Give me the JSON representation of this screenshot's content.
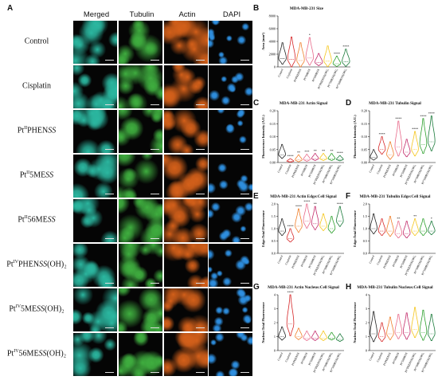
{
  "panel_labels": {
    "A": "A",
    "B": "B",
    "C": "C",
    "D": "D",
    "E": "E",
    "F": "F",
    "G": "G",
    "H": "H"
  },
  "columns": [
    "Merged",
    "Tubulin",
    "Actin",
    "DAPI"
  ],
  "rows": [
    {
      "base": "Control",
      "sup": "",
      "mid": "",
      "em": "",
      "tail": ""
    },
    {
      "base": "Cisplatin",
      "sup": "",
      "mid": "",
      "em": "",
      "tail": ""
    },
    {
      "base": "Pt",
      "sup": "II",
      "mid": "PHEN",
      "em": "SS",
      "tail": ""
    },
    {
      "base": "Pt",
      "sup": "II",
      "mid": "5ME",
      "em": "SS",
      "tail": ""
    },
    {
      "base": "Pt",
      "sup": "II",
      "mid": "56ME",
      "em": "SS",
      "tail": ""
    },
    {
      "base": "Pt",
      "sup": "IV",
      "mid": "PHEN",
      "em": "SS",
      "tail": "(OH)₂"
    },
    {
      "base": "Pt",
      "sup": "IV",
      "mid": "5ME",
      "em": "SS",
      "tail": "(OH)₂"
    },
    {
      "base": "Pt",
      "sup": "IV",
      "mid": "56ME",
      "em": "SS",
      "tail": "(OH)₂"
    }
  ],
  "colors": {
    "merged": "#2bb7a0",
    "tubulin": "#3fae3f",
    "actin": "#d4601a",
    "dapi": "#2e8fe0",
    "c0": "#222222",
    "c1": "#d62728",
    "c2": "#f07f2a",
    "c3": "#e86a8a",
    "c4": "#c22a6a",
    "c5": "#f5c518",
    "c6": "#2ca02c",
    "c7": "#1a7a3a"
  },
  "chart_categories": [
    "Control",
    "Cisplatin",
    "PtᴵᴵPHENSS",
    "Ptᴵᴵ5MESS",
    "Ptᴵᴵ56MESS",
    "PtᴵⱽPHENSS(OH)₂",
    "Ptᴵⱽ5MESS(OH)₂",
    "Ptᴵⱽ56MESS(OH)₂"
  ],
  "chart_data": [
    {
      "panel": "B",
      "type": "violin",
      "title": "MDA-MB-231 Size",
      "ylabel": "Area (mm²)",
      "yticks": [
        "0",
        "2000",
        "4000",
        "6000",
        "8000"
      ],
      "ylim": [
        0,
        8000
      ],
      "medians": [
        1300,
        1200,
        1000,
        1400,
        700,
        900,
        500,
        800
      ],
      "spread": [
        2500,
        3500,
        2800,
        3200,
        1400,
        2400,
        1200,
        2000
      ],
      "stars": [
        "",
        "",
        "",
        "*",
        "",
        "",
        "****",
        "****"
      ]
    },
    {
      "panel": "C",
      "type": "violin",
      "title": "MDA-MB-231 Actin Signal",
      "ylabel": "Fluorescence Intensity (A.U.)",
      "yticks": [
        "0.00",
        "0.05",
        "0.10",
        "0.15",
        "0.20"
      ],
      "ylim": [
        0,
        0.2
      ],
      "medians": [
        0.03,
        0.005,
        0.01,
        0.012,
        0.015,
        0.015,
        0.015,
        0.012
      ],
      "spread": [
        0.04,
        0.01,
        0.02,
        0.02,
        0.02,
        0.02,
        0.02,
        0.015
      ],
      "stars": [
        "",
        "****",
        "**",
        "***",
        "**",
        "**",
        "**",
        "****"
      ]
    },
    {
      "panel": "D",
      "type": "violin",
      "title": "MDA-MB-231 Tubulin Signal",
      "ylabel": "Fluorescence Intensity (A.U.)",
      "yticks": [
        "0.00",
        "0.05",
        "0.10",
        "0.15",
        "0.20"
      ],
      "ylim": [
        0,
        0.2
      ],
      "medians": [
        0.02,
        0.05,
        0.03,
        0.06,
        0.04,
        0.05,
        0.07,
        0.08
      ],
      "spread": [
        0.03,
        0.05,
        0.05,
        0.1,
        0.05,
        0.07,
        0.1,
        0.1
      ],
      "stars": [
        "",
        "****",
        "",
        "****",
        "",
        "****",
        "****",
        "****"
      ]
    },
    {
      "panel": "E",
      "type": "violin",
      "title": "MDA-MB-231 Actin Edge:Cell Signal",
      "ylabel": "Edge:Total Fluorescence",
      "yticks": [
        "0.0",
        "0.5",
        "1.0",
        "1.5",
        "2.0"
      ],
      "ylim": [
        0,
        2
      ],
      "medians": [
        0.9,
        0.6,
        1.1,
        1.3,
        1.2,
        1.1,
        1.0,
        1.3
      ],
      "spread": [
        0.5,
        0.4,
        0.7,
        0.8,
        0.7,
        0.5,
        0.5,
        0.6
      ],
      "stars": [
        "",
        "****",
        "****",
        "****",
        "**",
        "",
        "",
        "****"
      ]
    },
    {
      "panel": "F",
      "type": "violin",
      "title": "MDA-MB-231 Tubulin Edge:Cell Signal",
      "ylabel": "Edge:Total Fluorescence",
      "yticks": [
        "0.0",
        "0.5",
        "1.0",
        "1.5",
        "2.0"
      ],
      "ylim": [
        0,
        2
      ],
      "medians": [
        1.0,
        0.9,
        0.9,
        0.8,
        0.8,
        0.9,
        0.9,
        0.9
      ],
      "spread": [
        0.6,
        0.5,
        0.6,
        0.5,
        0.5,
        0.5,
        0.5,
        0.4
      ],
      "stars": [
        "",
        "",
        "",
        "**",
        "",
        "**",
        "",
        "*"
      ]
    },
    {
      "panel": "G",
      "type": "violin",
      "title": "MDA-MB-231 Actin Nucleus:Cell Signal",
      "ylabel": "Nucleus:Total Fluorescence",
      "yticks": [
        "0",
        "1",
        "2",
        "3",
        "4"
      ],
      "ylim": [
        0,
        4
      ],
      "medians": [
        1.0,
        1.9,
        1.0,
        0.9,
        0.9,
        0.9,
        0.9,
        0.8
      ],
      "spread": [
        0.7,
        2.4,
        0.6,
        0.5,
        0.5,
        0.5,
        0.4,
        0.4
      ],
      "stars": [
        "",
        "****",
        "",
        "",
        "",
        "",
        "",
        ""
      ]
    },
    {
      "panel": "H",
      "type": "violin",
      "title": "MDA-MB-231 Tubulin Nucleus:Cell Signal",
      "ylabel": "Nucleus:Total Fluorescence",
      "yticks": [
        "0",
        "1",
        "2",
        "3",
        "4"
      ],
      "ylim": [
        0,
        4
      ],
      "medians": [
        1.2,
        1.0,
        1.2,
        1.3,
        1.3,
        1.5,
        1.3,
        1.2
      ],
      "spread": [
        1.6,
        1.0,
        1.2,
        1.3,
        1.4,
        1.6,
        1.6,
        1.4
      ],
      "stars": [
        "",
        "",
        "",
        "",
        "",
        "",
        "",
        ""
      ]
    }
  ]
}
